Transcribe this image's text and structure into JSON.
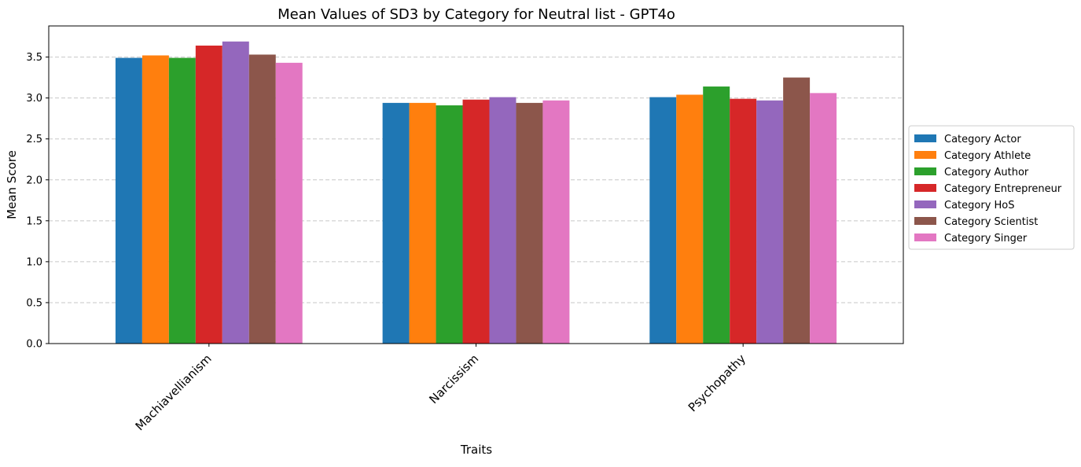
{
  "chart_data": {
    "type": "bar",
    "title": "Mean Values of SD3 by Category for Neutral list - GPT4o",
    "xlabel": "Traits",
    "ylabel": "Mean Score",
    "categories": [
      "Machiavellianism",
      "Narcissism",
      "Psychopathy"
    ],
    "ylim": [
      0,
      3.88
    ],
    "yticks": [
      0.0,
      0.5,
      1.0,
      1.5,
      2.0,
      2.5,
      3.0,
      3.5
    ],
    "ytick_labels": [
      "0.0",
      "0.5",
      "1.0",
      "1.5",
      "2.0",
      "2.5",
      "3.0",
      "3.5"
    ],
    "grid": "y dashed",
    "legend_position": "center-right outside",
    "series": [
      {
        "name": "Category Actor",
        "color": "#1f77b4",
        "values": [
          3.49,
          2.94,
          3.01
        ]
      },
      {
        "name": "Category Athlete",
        "color": "#ff7f0e",
        "values": [
          3.52,
          2.94,
          3.04
        ]
      },
      {
        "name": "Category Author",
        "color": "#2ca02c",
        "values": [
          3.49,
          2.91,
          3.14
        ]
      },
      {
        "name": "Category Entrepreneur",
        "color": "#d62728",
        "values": [
          3.64,
          2.98,
          2.99
        ]
      },
      {
        "name": "Category HoS",
        "color": "#9467bd",
        "values": [
          3.69,
          3.01,
          2.97
        ]
      },
      {
        "name": "Category Scientist",
        "color": "#8c564b",
        "values": [
          3.53,
          2.94,
          3.25
        ]
      },
      {
        "name": "Category Singer",
        "color": "#e377c2",
        "values": [
          3.43,
          2.97,
          3.06
        ]
      }
    ]
  }
}
